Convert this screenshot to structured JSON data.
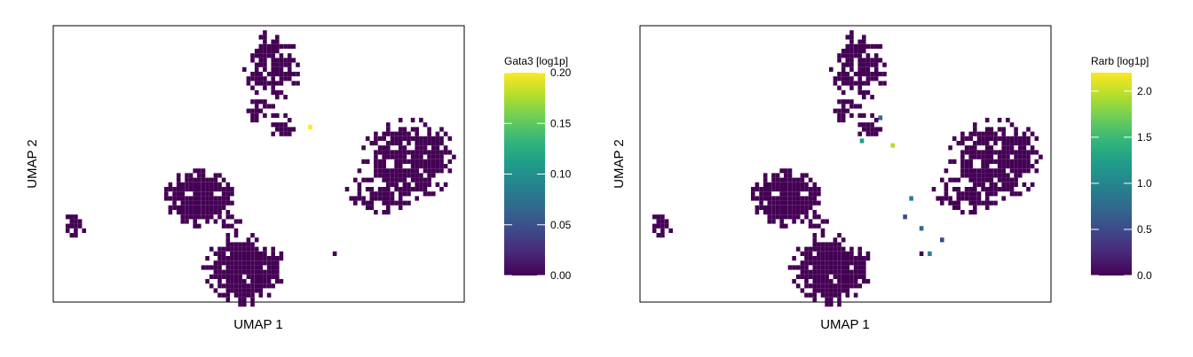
{
  "colormap": [
    "#440154",
    "#482878",
    "#3e4989",
    "#31688e",
    "#26828e",
    "#1f9e89",
    "#35b779",
    "#6ece58",
    "#b5de2b",
    "#fde725"
  ],
  "cluster_color": "#440154",
  "chart_data": [
    {
      "type": "heatmap",
      "subtype": "umap-hexbin",
      "xlabel": "UMAP 1",
      "ylabel": "UMAP 2",
      "colorbar": {
        "title": "Gata3 [log1p]",
        "range": [
          0,
          0.2
        ],
        "ticks": [
          "0.00",
          "0.05",
          "0.10",
          "0.15",
          "0.20"
        ]
      },
      "highlights": [
        {
          "x": 2.4,
          "y": 1.7,
          "value": 0.19
        }
      ]
    },
    {
      "type": "heatmap",
      "subtype": "umap-hexbin",
      "xlabel": "UMAP 1",
      "ylabel": "UMAP 2",
      "colorbar": {
        "title": "Rarb [log1p]",
        "range": [
          0,
          2.2
        ],
        "ticks": [
          "0.0",
          "0.5",
          "1.0",
          "1.5",
          "2.0"
        ]
      },
      "highlights": [
        {
          "x": 0.7,
          "y": 1.1,
          "value": 1.2
        },
        {
          "x": 1.6,
          "y": 2.1,
          "value": 0.8
        },
        {
          "x": 2.2,
          "y": 0.9,
          "value": 2.0
        },
        {
          "x": 3.1,
          "y": -1.4,
          "value": 0.9
        },
        {
          "x": 3.6,
          "y": -2.7,
          "value": 0.7
        },
        {
          "x": 4.0,
          "y": -3.8,
          "value": 1.0
        },
        {
          "x": 4.6,
          "y": -3.2,
          "value": 0.5
        },
        {
          "x": 2.8,
          "y": -2.2,
          "value": 0.6
        }
      ]
    }
  ]
}
